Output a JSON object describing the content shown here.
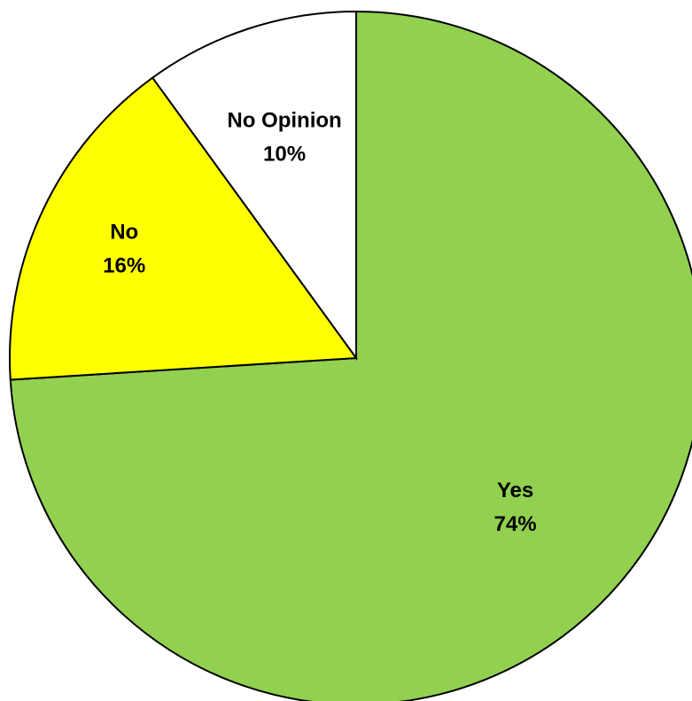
{
  "chart_data": {
    "type": "pie",
    "title": "",
    "start_angle_deg": 0,
    "direction": "clockwise",
    "legend": "none",
    "slices": [
      {
        "label": "Yes",
        "value": 74,
        "value_label": "74%",
        "color": "#92D050"
      },
      {
        "label": "No",
        "value": 16,
        "value_label": "16%",
        "color": "#FFFF00"
      },
      {
        "label": "No Opinion",
        "value": 10,
        "value_label": "10%",
        "color": "#FFFFFF"
      }
    ]
  }
}
